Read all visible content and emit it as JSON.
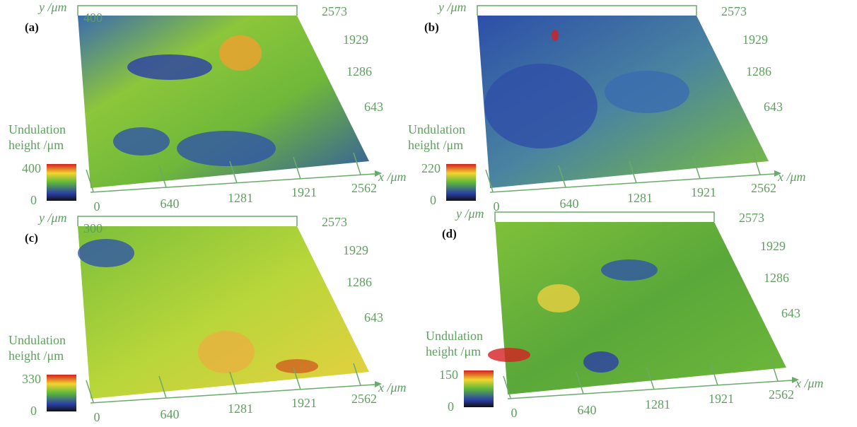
{
  "panels": [
    {
      "label": "(a)",
      "y_axis_label": "y /μm",
      "x_axis_label": "x /μm",
      "z_top": 400,
      "y_ticks": [
        643,
        1286,
        1929,
        2573
      ],
      "x_ticks": [
        0,
        640,
        1281,
        1921,
        2562
      ],
      "legend_title": [
        "Undulation",
        "height /μm"
      ],
      "colorbar_max": 400,
      "colorbar_min": 0
    },
    {
      "label": "(b)",
      "y_axis_label": "y /μm",
      "x_axis_label": "x /μm",
      "y_ticks": [
        643,
        1286,
        1929,
        2573
      ],
      "x_ticks": [
        0,
        640,
        1281,
        1921,
        2562
      ],
      "legend_title": [
        "Undulation",
        "height /μm"
      ],
      "colorbar_max": 220,
      "colorbar_min": 0
    },
    {
      "label": "(c)",
      "y_axis_label": "y /μm",
      "x_axis_label": "x /μm",
      "z_top": 300,
      "y_ticks": [
        643,
        1286,
        1929,
        2573
      ],
      "x_ticks": [
        0,
        640,
        1281,
        1921,
        2562
      ],
      "legend_title": [
        "Undulation",
        "height /μm"
      ],
      "colorbar_max": 330,
      "colorbar_min": 0
    },
    {
      "label": "(d)",
      "y_axis_label": "y /μm",
      "x_axis_label": "x /μm",
      "y_ticks": [
        643,
        1286,
        1929,
        2573
      ],
      "x_ticks": [
        0,
        640,
        1281,
        1921,
        2562
      ],
      "legend_title": [
        "Undulation",
        "height /μm"
      ],
      "colorbar_max": 150,
      "colorbar_min": 0
    }
  ]
}
